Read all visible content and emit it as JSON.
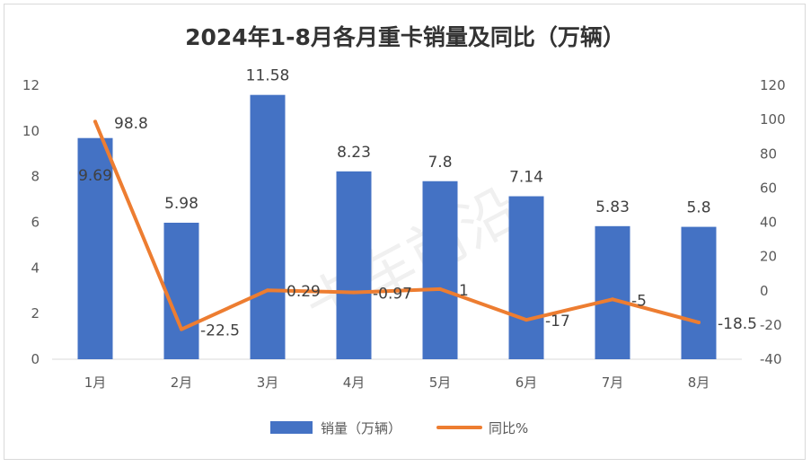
{
  "chart_data": {
    "type": "bar",
    "title": "2024年1-8月各月重卡销量及同比（万辆）",
    "categories": [
      "1月",
      "2月",
      "3月",
      "4月",
      "5月",
      "6月",
      "7月",
      "8月"
    ],
    "series": [
      {
        "name": "销量（万辆）",
        "type": "bar",
        "axis": "left",
        "color": "#4472C4",
        "values": [
          9.69,
          5.98,
          11.58,
          8.23,
          7.8,
          7.14,
          5.83,
          5.8
        ],
        "labels": [
          "9.69",
          "5.98",
          "11.58",
          "8.23",
          "7.8",
          "7.14",
          "5.83",
          "5.8"
        ]
      },
      {
        "name": "同比%",
        "type": "line",
        "axis": "right",
        "color": "#ED7D31",
        "values": [
          98.8,
          -22.5,
          0.29,
          -0.97,
          1,
          -17,
          -5,
          -18.5
        ],
        "labels": [
          "98.8",
          "-22.5",
          "0.29",
          "-0.97",
          "1",
          "-17",
          "-5",
          "-18.5"
        ]
      }
    ],
    "yleft": {
      "min": 0,
      "max": 12,
      "ticks": [
        "0",
        "2",
        "4",
        "6",
        "8",
        "10",
        "12"
      ]
    },
    "yright": {
      "min": -40,
      "max": 120,
      "ticks": [
        "-40",
        "-20",
        "0",
        "20",
        "40",
        "60",
        "80",
        "100",
        "120"
      ]
    },
    "grid": false,
    "legend": "bottom"
  },
  "watermark": "卡车前沿"
}
